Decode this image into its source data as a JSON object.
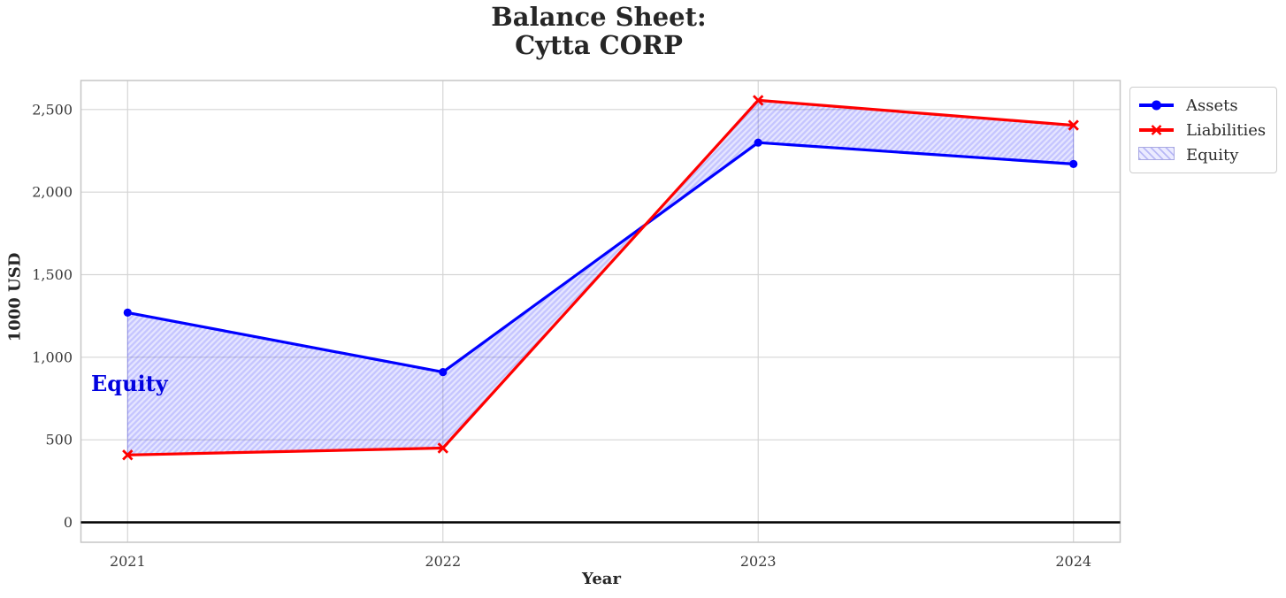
{
  "title": {
    "line1": "Balance Sheet:",
    "line2": "Cytta CORP"
  },
  "axis": {
    "xlabel": "Year",
    "ylabel": "1000 USD"
  },
  "legend": {
    "items": [
      {
        "label": "Assets",
        "marker": "blue-line-circle"
      },
      {
        "label": "Liabilities",
        "marker": "red-line-x"
      },
      {
        "label": "Equity",
        "marker": "hatched-patch"
      }
    ]
  },
  "annotation": {
    "text": "Equity",
    "color": "#0202e0"
  },
  "colors": {
    "assets": "#0000ff",
    "liabilities": "#ff0000",
    "equity_fill_base": "rgba(0,0,255,0.10)",
    "equity_hatch_line": "rgba(0,0,255,0.14)",
    "zero_line": "#000000",
    "grid": "#d5d5d5",
    "spine": "#c6c6c6"
  },
  "chart_data": {
    "type": "line",
    "title": "Balance Sheet:\nCytta CORP",
    "xlabel": "Year",
    "ylabel": "1000 USD",
    "x": [
      2021,
      2022,
      2023,
      2024
    ],
    "xtick_labels": [
      "2021",
      "2022",
      "2023",
      "2024"
    ],
    "yticks": [
      0,
      500,
      1000,
      1500,
      2000,
      2500
    ],
    "ytick_labels": [
      "0",
      "500",
      "1,000",
      "1,500",
      "2,000",
      "2,500"
    ],
    "ylim": [
      -120,
      2675
    ],
    "grid": true,
    "zero_line": true,
    "legend_position": "upper right, outside axes",
    "series": [
      {
        "name": "Assets",
        "color": "#0000ff",
        "marker": "circle",
        "values": [
          1270,
          910,
          2300,
          2170
        ]
      },
      {
        "name": "Liabilities",
        "color": "#ff0000",
        "marker": "x",
        "values": [
          408,
          450,
          2556,
          2405
        ]
      }
    ],
    "fill_between": {
      "name": "Equity",
      "between": [
        "Assets",
        "Liabilities"
      ],
      "hatch": "//",
      "equity_values": [
        862,
        460,
        -256,
        -235
      ]
    }
  }
}
